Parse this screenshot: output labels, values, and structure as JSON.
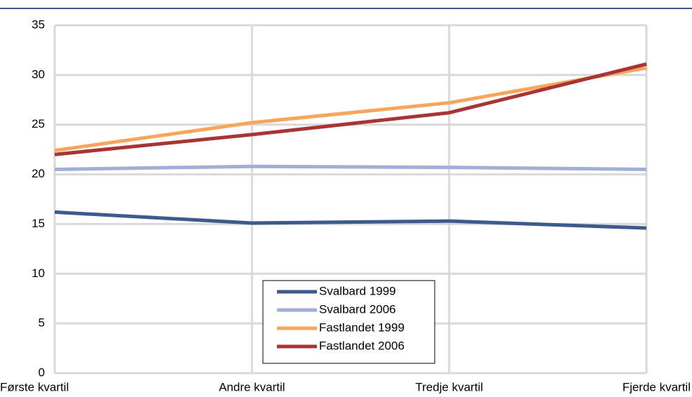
{
  "chart_data": {
    "type": "line",
    "categories": [
      "Første kvartil",
      "Andre kvartil",
      "Tredje kvartil",
      "Fjerde kvartil"
    ],
    "series": [
      {
        "name": "Svalbard 1999",
        "color": "#3d5a8c",
        "values": [
          16.2,
          15.1,
          15.3,
          14.6
        ]
      },
      {
        "name": "Svalbard 2006",
        "color": "#9fb0d6",
        "values": [
          20.5,
          20.8,
          20.7,
          20.5
        ]
      },
      {
        "name": "Fastlandet 1999",
        "color": "#f9a65a",
        "values": [
          22.4,
          25.2,
          27.2,
          30.7
        ]
      },
      {
        "name": "Fastlandet 2006",
        "color": "#a83434",
        "values": [
          22.0,
          24.0,
          26.2,
          31.1
        ]
      }
    ],
    "ylim": [
      0,
      35
    ],
    "yticks": [
      0,
      5,
      10,
      15,
      20,
      25,
      30,
      35
    ],
    "grid": true
  }
}
